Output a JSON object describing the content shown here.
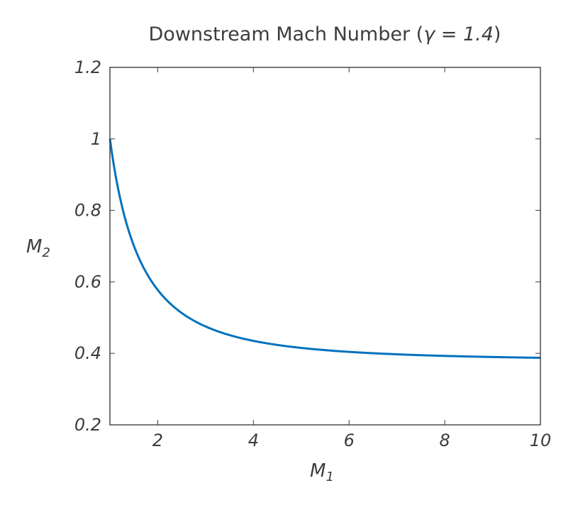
{
  "chart_data": {
    "type": "line",
    "title_prefix": "Downstream Mach Number (",
    "title_symbol": "γ",
    "title_eq": " = ",
    "title_value": "1.4",
    "title_suffix": ")",
    "xlabel_main": "M",
    "xlabel_sub": "1",
    "ylabel_main": "M",
    "ylabel_sub": "2",
    "xlim": [
      1,
      10
    ],
    "ylim": [
      0.2,
      1.2
    ],
    "x_ticks": [
      2,
      4,
      6,
      8,
      10
    ],
    "x_tick_labels": [
      "2",
      "4",
      "6",
      "8",
      "10"
    ],
    "y_ticks": [
      0.2,
      0.4,
      0.6,
      0.8,
      1.0,
      1.2
    ],
    "y_tick_labels": [
      "0.2",
      "0.4",
      "0.6",
      "0.8",
      "1",
      "1.2"
    ],
    "grid": false,
    "gamma": 1.4,
    "series": [
      {
        "color": "#0072bd",
        "x": [
          1.0,
          1.1,
          1.2,
          1.3,
          1.4,
          1.5,
          1.6,
          1.8,
          2.0,
          2.2,
          2.5,
          2.8,
          3.0,
          3.5,
          4.0,
          4.5,
          5.0,
          6.0,
          7.0,
          8.0,
          9.0,
          10.0
        ],
        "y": [
          1.0,
          0.9118,
          0.8422,
          0.786,
          0.7397,
          0.7011,
          0.6684,
          0.6165,
          0.5774,
          0.5471,
          0.513,
          0.4882,
          0.4752,
          0.4512,
          0.435,
          0.4236,
          0.4152,
          0.4042,
          0.3974,
          0.3929,
          0.3898,
          0.3876
        ]
      }
    ]
  }
}
